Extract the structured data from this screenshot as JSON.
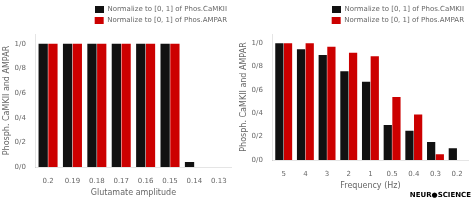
{
  "chart_data": [
    {
      "type": "bar",
      "categories": [
        "0.2",
        "0.19",
        "0.18",
        "0.17",
        "0.16",
        "0.15",
        "0.14",
        "0.13"
      ],
      "series": [
        {
          "name": "Normalize to [0, 1] of Phos.CaMKII",
          "color": "#111111",
          "values": [
            1.0,
            1.0,
            1.0,
            1.0,
            1.0,
            1.0,
            0.04,
            0.0
          ]
        },
        {
          "name": "Normalize to [0, 1] of Phos.AMPAR",
          "color": "#cc0000",
          "values": [
            1.0,
            1.0,
            1.0,
            1.0,
            1.0,
            1.0,
            0.0,
            0.0
          ]
        }
      ],
      "xlabel": "Glutamate amplitude",
      "ylabel": "Phosph. CaMKII and AMPAR",
      "ylim": [
        0,
        1.08
      ],
      "yticks": [
        {
          "value": 0.0,
          "label": "0/0"
        },
        {
          "value": 0.2,
          "label": "0/2"
        },
        {
          "value": 0.4,
          "label": "0/4"
        },
        {
          "value": 0.6,
          "label": "0/6"
        },
        {
          "value": 0.8,
          "label": "0/8"
        },
        {
          "value": 1.0,
          "label": "1/0"
        }
      ],
      "grid": false,
      "legend": "upper right"
    },
    {
      "type": "bar",
      "categories": [
        "5",
        "4",
        "3",
        "2",
        "1",
        "0.5",
        "0.4",
        "0.3",
        "0.2"
      ],
      "series": [
        {
          "name": "Normalize to [0, 1] of Phos.CaMKII",
          "color": "#111111",
          "values": [
            1.0,
            0.95,
            0.9,
            0.76,
            0.67,
            0.3,
            0.25,
            0.155,
            0.1
          ]
        },
        {
          "name": "Normalize to [0, 1] of Phos.AMPAR",
          "color": "#cc0000",
          "values": [
            1.0,
            1.0,
            0.97,
            0.92,
            0.89,
            0.54,
            0.39,
            0.05,
            0.0
          ]
        }
      ],
      "xlabel": "Frequency (Hz)",
      "ylabel": "Phosph. CaMKII and AMPAR",
      "ylim": [
        0,
        1.08
      ],
      "yticks": [
        {
          "value": 0.0,
          "label": "0/0"
        },
        {
          "value": 0.2,
          "label": "0/2"
        },
        {
          "value": 0.4,
          "label": "0/4"
        },
        {
          "value": 0.6,
          "label": "0/6"
        },
        {
          "value": 0.8,
          "label": "0/8"
        },
        {
          "value": 1.0,
          "label": "1/0"
        }
      ],
      "grid": false,
      "legend": "upper right",
      "annotations": [
        "NEUR●SCIENCE"
      ]
    }
  ]
}
